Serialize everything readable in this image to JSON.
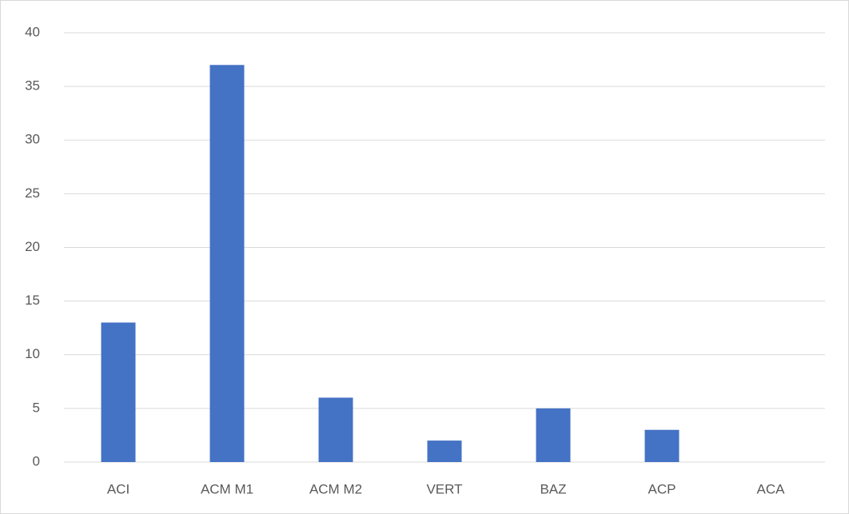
{
  "chart_data": {
    "type": "bar",
    "categories": [
      "ACI",
      "ACM M1",
      "ACM M2",
      "VERT",
      "BAZ",
      "ACP",
      "ACA"
    ],
    "values": [
      13,
      37,
      6,
      2,
      5,
      3,
      0
    ],
    "color": "#4472c4",
    "ylim": [
      0,
      40
    ],
    "yticks": [
      0,
      5,
      10,
      15,
      20,
      25,
      30,
      35,
      40
    ],
    "grid": true
  }
}
